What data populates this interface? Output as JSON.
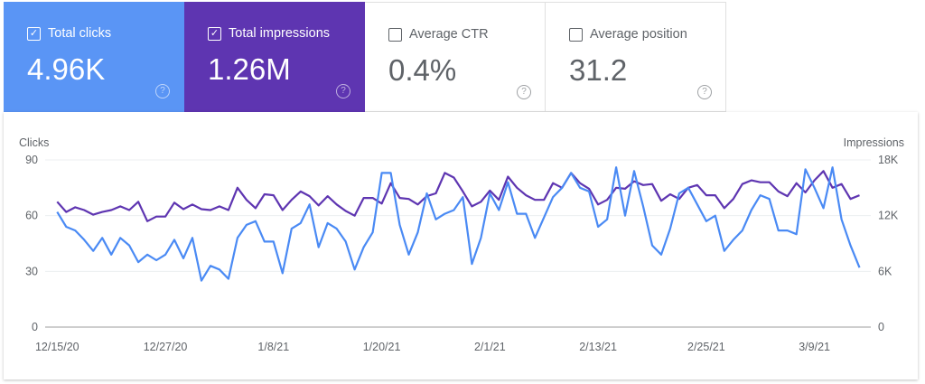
{
  "cards": [
    {
      "label": "Total clicks",
      "value": "4.96K",
      "checked": true,
      "color": "#5a95f5"
    },
    {
      "label": "Total impressions",
      "value": "1.26M",
      "checked": true,
      "color": "#5e35b1"
    },
    {
      "label": "Average CTR",
      "value": "0.4%",
      "checked": false
    },
    {
      "label": "Average position",
      "value": "31.2",
      "checked": false
    }
  ],
  "icons": {
    "checkbox": "checkbox-icon",
    "help": "help-circle-icon"
  },
  "chart_data": {
    "type": "line",
    "ylabel": "Clicks",
    "ylabel_right": "Impressions",
    "ylim": [
      0,
      90
    ],
    "ylim_right": [
      0,
      18000
    ],
    "yticks": [
      "0",
      "30",
      "60",
      "90"
    ],
    "yticks_right": [
      "0",
      "6K",
      "12K",
      "18K"
    ],
    "xticks": [
      "12/15/20",
      "12/27/20",
      "1/8/21",
      "1/20/21",
      "2/1/21",
      "2/13/21",
      "2/25/21",
      "3/9/21"
    ],
    "grid": true,
    "x": [
      "12/15/20",
      "12/16/20",
      "12/17/20",
      "12/18/20",
      "12/19/20",
      "12/20/20",
      "12/21/20",
      "12/22/20",
      "12/23/20",
      "12/24/20",
      "12/25/20",
      "12/26/20",
      "12/27/20",
      "12/28/20",
      "12/29/20",
      "12/30/20",
      "12/31/20",
      "1/1/21",
      "1/2/21",
      "1/3/21",
      "1/4/21",
      "1/5/21",
      "1/6/21",
      "1/7/21",
      "1/8/21",
      "1/9/21",
      "1/10/21",
      "1/11/21",
      "1/12/21",
      "1/13/21",
      "1/14/21",
      "1/15/21",
      "1/16/21",
      "1/17/21",
      "1/18/21",
      "1/19/21",
      "1/20/21",
      "1/21/21",
      "1/22/21",
      "1/23/21",
      "1/24/21",
      "1/25/21",
      "1/26/21",
      "1/27/21",
      "1/28/21",
      "1/29/21",
      "1/30/21",
      "1/31/21",
      "2/1/21",
      "2/2/21",
      "2/3/21",
      "2/4/21",
      "2/5/21",
      "2/6/21",
      "2/7/21",
      "2/8/21",
      "2/9/21",
      "2/10/21",
      "2/11/21",
      "2/12/21",
      "2/13/21",
      "2/14/21",
      "2/15/21",
      "2/16/21",
      "2/17/21",
      "2/18/21",
      "2/19/21",
      "2/20/21",
      "2/21/21",
      "2/22/21",
      "2/23/21",
      "2/24/21",
      "2/25/21",
      "2/26/21",
      "2/27/21",
      "2/28/21",
      "3/1/21",
      "3/2/21",
      "3/3/21",
      "3/4/21",
      "3/5/21",
      "3/6/21",
      "3/7/21",
      "3/8/21",
      "3/9/21",
      "3/10/21",
      "3/11/21",
      "3/12/21",
      "3/13/21",
      "3/14/21"
    ],
    "series": [
      {
        "name": "Clicks",
        "axis": "left",
        "color": "#4a8af4",
        "values": [
          62,
          54,
          52,
          47,
          41,
          48,
          39,
          48,
          44,
          35,
          39,
          36,
          39,
          47,
          37,
          48,
          25,
          33,
          31,
          26,
          48,
          55,
          57,
          46,
          46,
          29,
          53,
          56,
          66,
          43,
          56,
          53,
          46,
          31,
          43,
          51,
          83,
          83,
          55,
          39,
          51,
          72,
          58,
          61,
          63,
          70,
          34,
          48,
          72,
          63,
          78,
          61,
          61,
          48,
          59,
          70,
          75,
          83,
          75,
          73,
          54,
          58,
          86,
          60,
          84,
          65,
          44,
          39,
          53,
          72,
          75,
          66,
          57,
          60,
          41,
          47,
          52,
          63,
          71,
          69,
          52,
          52,
          50,
          85,
          75,
          64,
          86,
          58,
          44,
          32
        ]
      },
      {
        "name": "Impressions",
        "axis": "right",
        "color": "#5e35b1",
        "values": [
          13500,
          12400,
          12900,
          12600,
          12100,
          12400,
          12600,
          13000,
          12600,
          13500,
          11400,
          11900,
          11900,
          13400,
          12700,
          13200,
          12700,
          12600,
          13000,
          12600,
          15000,
          13700,
          12800,
          14300,
          14200,
          12600,
          13700,
          14600,
          14100,
          13100,
          14100,
          13200,
          12500,
          12000,
          13900,
          13900,
          13300,
          15500,
          13900,
          13800,
          13200,
          14100,
          14400,
          16600,
          16100,
          14600,
          13000,
          13500,
          14700,
          13700,
          16200,
          15000,
          14200,
          13700,
          13700,
          15500,
          15000,
          16600,
          15500,
          14900,
          13200,
          13700,
          15000,
          14900,
          15700,
          15300,
          15400,
          13600,
          14300,
          13800,
          15000,
          15300,
          14200,
          14200,
          12800,
          13800,
          15400,
          15800,
          15600,
          15600,
          14600,
          14100,
          15500,
          14500,
          15800,
          16800,
          15000,
          15400,
          13800,
          14200
        ]
      }
    ]
  }
}
